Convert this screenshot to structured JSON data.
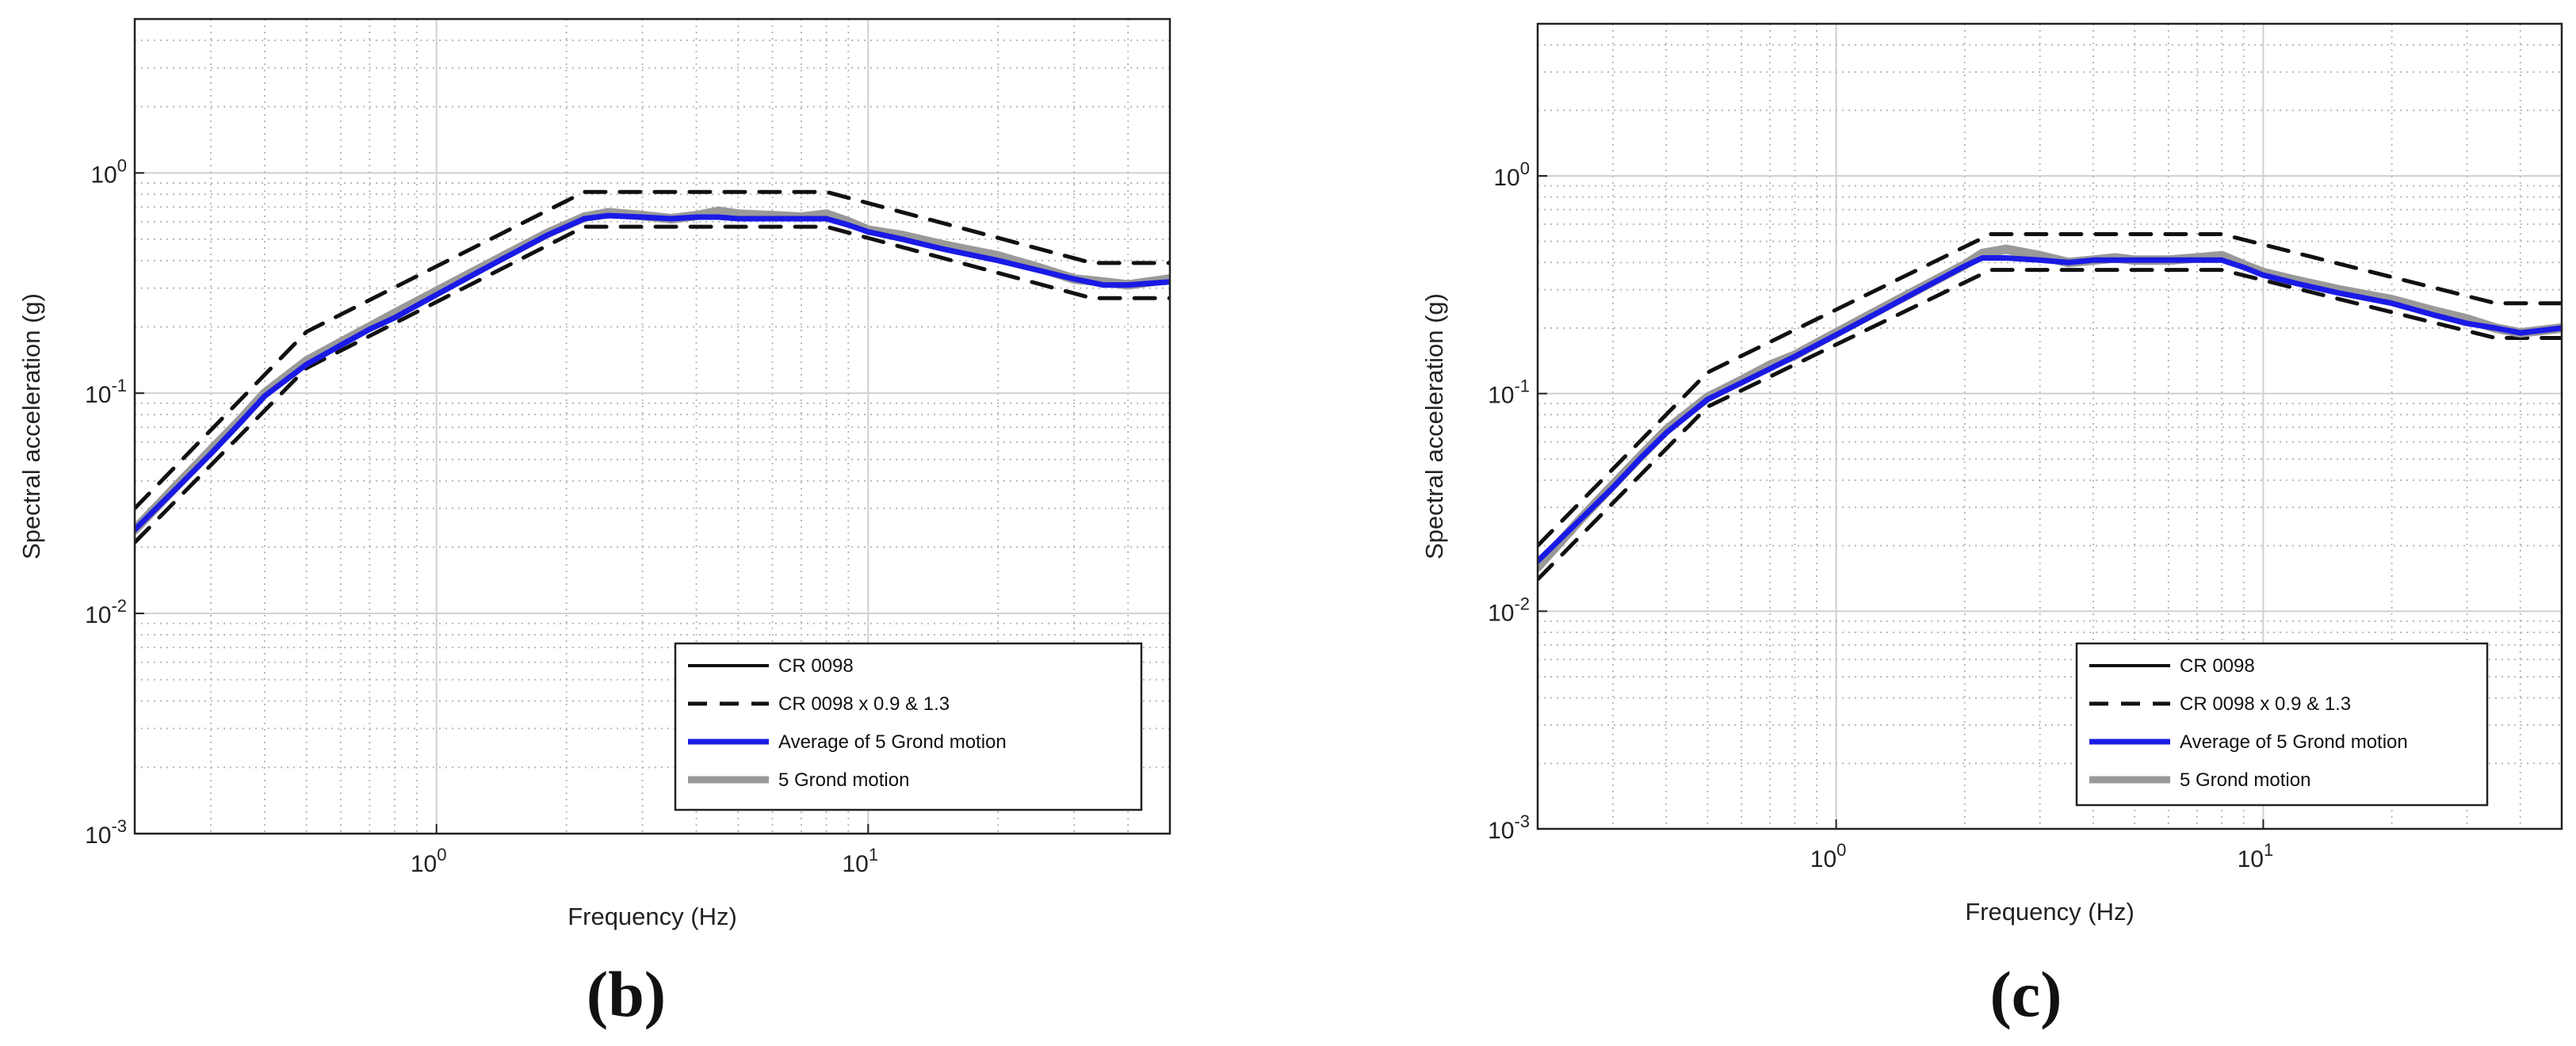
{
  "chart_data": [
    {
      "type": "line",
      "panel_label": "(b)",
      "xscale": "log",
      "yscale": "log",
      "xlabel": "Frequency (Hz)",
      "ylabel": "Spectral acceleration (g)",
      "xlim": [
        0.2,
        50
      ],
      "ylim": [
        0.001,
        5
      ],
      "grid": true,
      "x_ticks": [
        {
          "value": 1,
          "base": "10",
          "exp": "0"
        },
        {
          "value": 10,
          "base": "10",
          "exp": "1"
        }
      ],
      "y_ticks": [
        {
          "value": 1,
          "base": "10",
          "exp": "0"
        },
        {
          "value": 0.1,
          "base": "10",
          "exp": "-1"
        },
        {
          "value": 0.01,
          "base": "10",
          "exp": "-2"
        },
        {
          "value": 0.001,
          "base": "10",
          "exp": "-3"
        }
      ],
      "legend_position": "bottom-right",
      "legend": [
        "CR 0098",
        "CR 0098 x 0.9 & 1.3",
        "Average of 5 Grond motion",
        "5 Grond motion"
      ],
      "series": [
        {
          "name": "CR 0098 x 0.9 & 1.3",
          "role": "upper",
          "x": [
            0.2,
            0.5,
            2.2,
            8.0,
            33.0,
            50.0
          ],
          "y": [
            0.03,
            0.19,
            0.82,
            0.82,
            0.39,
            0.39
          ]
        },
        {
          "name": "CR 0098 x 0.9 & 1.3",
          "role": "lower",
          "x": [
            0.2,
            0.5,
            2.2,
            8.0,
            33.0,
            50.0
          ],
          "y": [
            0.021,
            0.13,
            0.57,
            0.57,
            0.27,
            0.27
          ]
        },
        {
          "name": "5 Grond motion",
          "x": [
            0.2,
            0.25,
            0.3,
            0.35,
            0.4,
            0.5,
            0.6,
            0.7,
            0.8,
            0.9,
            1.0,
            1.2,
            1.4,
            1.6,
            1.8,
            2.0,
            2.2,
            2.5,
            3.0,
            3.5,
            4.0,
            4.5,
            5.0,
            6.0,
            7.0,
            8.0,
            9.0,
            10.0,
            12.0,
            15.0,
            20.0,
            25.0,
            30.0,
            35.0,
            40.0,
            50.0
          ],
          "y": [
            0.024,
            0.038,
            0.055,
            0.075,
            0.1,
            0.14,
            0.17,
            0.2,
            0.23,
            0.26,
            0.29,
            0.35,
            0.41,
            0.47,
            0.53,
            0.58,
            0.63,
            0.66,
            0.64,
            0.62,
            0.64,
            0.67,
            0.65,
            0.64,
            0.63,
            0.65,
            0.6,
            0.55,
            0.52,
            0.47,
            0.42,
            0.37,
            0.33,
            0.32,
            0.31,
            0.33
          ]
        },
        {
          "name": "Average of 5 Grond motion",
          "x": [
            0.2,
            0.25,
            0.3,
            0.35,
            0.4,
            0.5,
            0.6,
            0.7,
            0.8,
            0.9,
            1.0,
            1.2,
            1.4,
            1.6,
            1.8,
            2.0,
            2.2,
            2.5,
            3.0,
            3.5,
            4.0,
            4.5,
            5.0,
            6.0,
            7.0,
            8.0,
            9.0,
            10.0,
            12.0,
            15.0,
            20.0,
            25.0,
            30.0,
            35.0,
            40.0,
            50.0
          ],
          "y": [
            0.024,
            0.037,
            0.053,
            0.073,
            0.097,
            0.135,
            0.165,
            0.195,
            0.22,
            0.25,
            0.28,
            0.34,
            0.4,
            0.46,
            0.52,
            0.57,
            0.62,
            0.64,
            0.63,
            0.62,
            0.63,
            0.63,
            0.62,
            0.62,
            0.62,
            0.62,
            0.58,
            0.54,
            0.5,
            0.45,
            0.4,
            0.36,
            0.33,
            0.31,
            0.31,
            0.32
          ]
        }
      ]
    },
    {
      "type": "line",
      "panel_label": "(c)",
      "xscale": "log",
      "yscale": "log",
      "xlabel": "Frequency (Hz)",
      "ylabel": "Spectral acceleration (g)",
      "xlim": [
        0.2,
        50
      ],
      "ylim": [
        0.001,
        5
      ],
      "grid": true,
      "x_ticks": [
        {
          "value": 1,
          "base": "10",
          "exp": "0"
        },
        {
          "value": 10,
          "base": "10",
          "exp": "1"
        }
      ],
      "y_ticks": [
        {
          "value": 1,
          "base": "10",
          "exp": "0"
        },
        {
          "value": 0.1,
          "base": "10",
          "exp": "-1"
        },
        {
          "value": 0.01,
          "base": "10",
          "exp": "-2"
        },
        {
          "value": 0.001,
          "base": "10",
          "exp": "-3"
        }
      ],
      "legend_position": "bottom-right",
      "legend": [
        "CR 0098",
        "CR 0098 x 0.9 & 1.3",
        "Average of 5 Grond motion",
        "5 Grond motion"
      ],
      "series": [
        {
          "name": "CR 0098 x 0.9 & 1.3",
          "role": "upper",
          "x": [
            0.2,
            0.5,
            2.3,
            8.0,
            35.0,
            50.0
          ],
          "y": [
            0.02,
            0.125,
            0.54,
            0.54,
            0.26,
            0.26
          ]
        },
        {
          "name": "CR 0098 x 0.9 & 1.3",
          "role": "lower",
          "x": [
            0.2,
            0.5,
            2.3,
            8.0,
            35.0,
            50.0
          ],
          "y": [
            0.014,
            0.087,
            0.37,
            0.37,
            0.18,
            0.18
          ]
        },
        {
          "name": "5 Grond motion",
          "x": [
            0.2,
            0.25,
            0.3,
            0.35,
            0.4,
            0.5,
            0.6,
            0.7,
            0.8,
            0.9,
            1.0,
            1.2,
            1.4,
            1.6,
            1.8,
            2.0,
            2.2,
            2.5,
            3.0,
            3.5,
            4.0,
            4.5,
            5.0,
            6.0,
            7.0,
            8.0,
            9.0,
            10.0,
            12.0,
            15.0,
            20.0,
            25.0,
            30.0,
            35.0,
            40.0,
            50.0
          ],
          "y": [
            0.016,
            0.026,
            0.038,
            0.052,
            0.068,
            0.096,
            0.115,
            0.135,
            0.15,
            0.17,
            0.19,
            0.23,
            0.27,
            0.31,
            0.35,
            0.39,
            0.44,
            0.46,
            0.43,
            0.4,
            0.41,
            0.42,
            0.41,
            0.41,
            0.42,
            0.43,
            0.39,
            0.36,
            0.33,
            0.3,
            0.27,
            0.24,
            0.22,
            0.2,
            0.19,
            0.2
          ]
        },
        {
          "name": "Average of 5 Grond motion",
          "x": [
            0.2,
            0.25,
            0.3,
            0.35,
            0.4,
            0.5,
            0.6,
            0.7,
            0.8,
            0.9,
            1.0,
            1.2,
            1.4,
            1.6,
            1.8,
            2.0,
            2.2,
            2.5,
            3.0,
            3.5,
            4.0,
            4.5,
            5.0,
            6.0,
            7.0,
            8.0,
            9.0,
            10.0,
            12.0,
            15.0,
            20.0,
            25.0,
            30.0,
            35.0,
            40.0,
            50.0
          ],
          "y": [
            0.017,
            0.026,
            0.037,
            0.051,
            0.066,
            0.094,
            0.112,
            0.13,
            0.148,
            0.167,
            0.186,
            0.225,
            0.265,
            0.305,
            0.345,
            0.385,
            0.42,
            0.42,
            0.41,
            0.4,
            0.41,
            0.41,
            0.41,
            0.41,
            0.41,
            0.41,
            0.38,
            0.35,
            0.32,
            0.29,
            0.26,
            0.23,
            0.21,
            0.2,
            0.19,
            0.2
          ]
        }
      ]
    }
  ]
}
